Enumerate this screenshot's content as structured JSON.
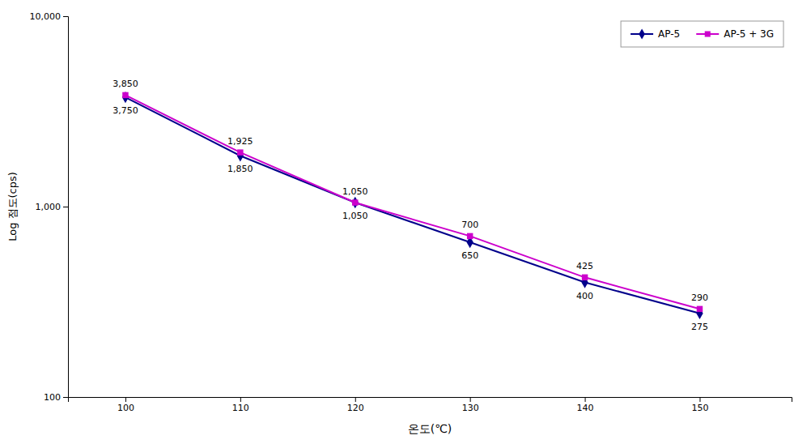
{
  "chart_data": {
    "type": "line",
    "x": [
      100,
      110,
      120,
      130,
      140,
      150
    ],
    "xlim": [
      95,
      158
    ],
    "xticks": [
      100,
      110,
      120,
      130,
      140,
      150
    ],
    "ylim": [
      100,
      10000
    ],
    "yticks": [
      100,
      {
        "value": 1000,
        "label": "1,000"
      },
      {
        "value": 10000,
        "label": "10,000"
      }
    ],
    "log": "y",
    "grid": false,
    "legend": "upper right",
    "data_labels": true,
    "xlabel": "온도(℃)",
    "ylabel": "Log 점도(cps)",
    "series": [
      {
        "name": "AP-5",
        "color": "#00008B",
        "marker": "diamond",
        "values": [
          3750,
          1850,
          1050,
          650,
          400,
          275
        ],
        "value_labels": [
          "3,750",
          "1,850",
          "1,050",
          "650",
          "400",
          "275"
        ]
      },
      {
        "name": "AP-5 + 3G",
        "color": "#CC00CC",
        "marker": "square",
        "values": [
          3850,
          1925,
          1050,
          700,
          425,
          290
        ],
        "value_labels": [
          "3,850",
          "1,925",
          "1,050",
          "700",
          "425",
          "290"
        ]
      }
    ]
  }
}
